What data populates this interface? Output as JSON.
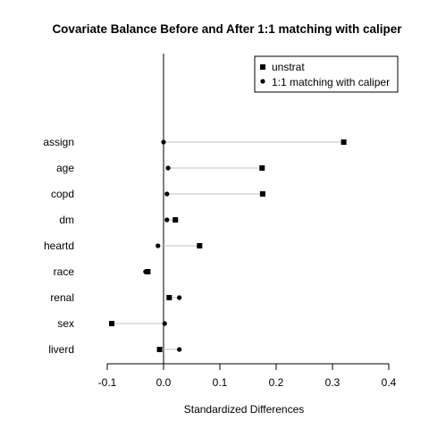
{
  "chart_data": {
    "type": "dot",
    "title": "Covariate Balance Before and After 1:1 matching with caliper",
    "xlabel": "Standardized Differences",
    "ylabel": "",
    "xlim": [
      -0.14,
      0.4
    ],
    "xticks": [
      -0.1,
      0.0,
      0.1,
      0.2,
      0.3,
      0.4
    ],
    "xtick_labels": [
      "-0.1",
      "0.0",
      "0.1",
      "0.2",
      "0.3",
      "0.4"
    ],
    "reference_line_x": 0,
    "categories": [
      "assign",
      "age",
      "copd",
      "dm",
      "heartd",
      "race",
      "renal",
      "sex",
      "liverd"
    ],
    "series": [
      {
        "name": "unstrat",
        "marker": "square",
        "values": [
          0.32,
          0.175,
          0.176,
          0.021,
          0.064,
          -0.028,
          0.01,
          -0.092,
          -0.007
        ]
      },
      {
        "name": "1:1 matching with caliper",
        "marker": "circle",
        "values": [
          0.0,
          0.008,
          0.006,
          0.006,
          -0.01,
          -0.032,
          0.028,
          0.002,
          0.028
        ]
      }
    ],
    "connector_color": "#c0c0c0",
    "legend_position": "top-right",
    "grid": false
  }
}
